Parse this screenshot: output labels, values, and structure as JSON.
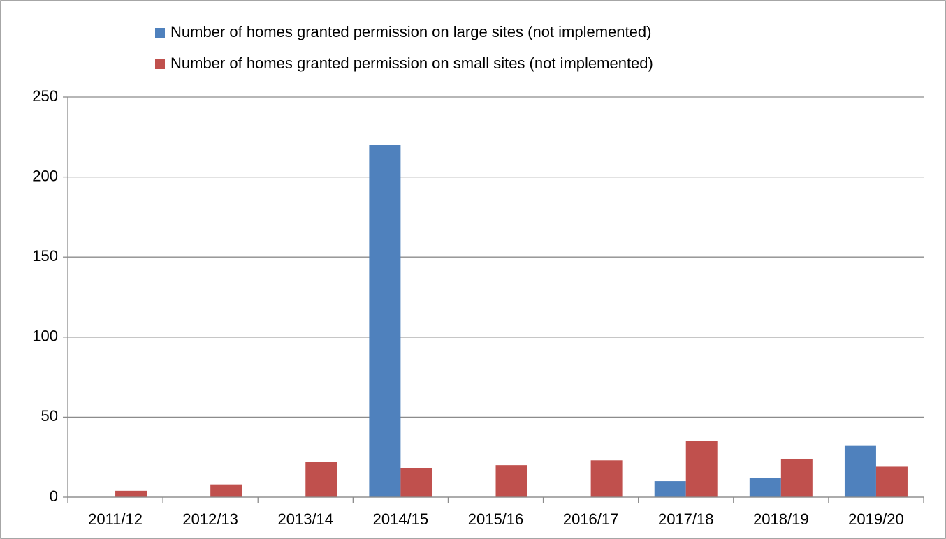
{
  "chart_data": {
    "type": "bar",
    "categories": [
      "2011/12",
      "2012/13",
      "2013/14",
      "2014/15",
      "2015/16",
      "2016/17",
      "2017/18",
      "2018/19",
      "2019/20"
    ],
    "series": [
      {
        "name": "Number of homes granted permission on large sites (not implemented)",
        "color": "#4f81bd",
        "values": [
          0,
          0,
          0,
          220,
          0,
          0,
          10,
          12,
          32
        ]
      },
      {
        "name": "Number of homes granted permission on small sites (not implemented)",
        "color": "#c0504d",
        "values": [
          4,
          8,
          22,
          18,
          20,
          23,
          35,
          24,
          19
        ]
      }
    ],
    "ylim": [
      0,
      250
    ],
    "yticks": [
      0,
      50,
      100,
      150,
      200,
      250
    ],
    "grid": true,
    "legend": "top"
  }
}
